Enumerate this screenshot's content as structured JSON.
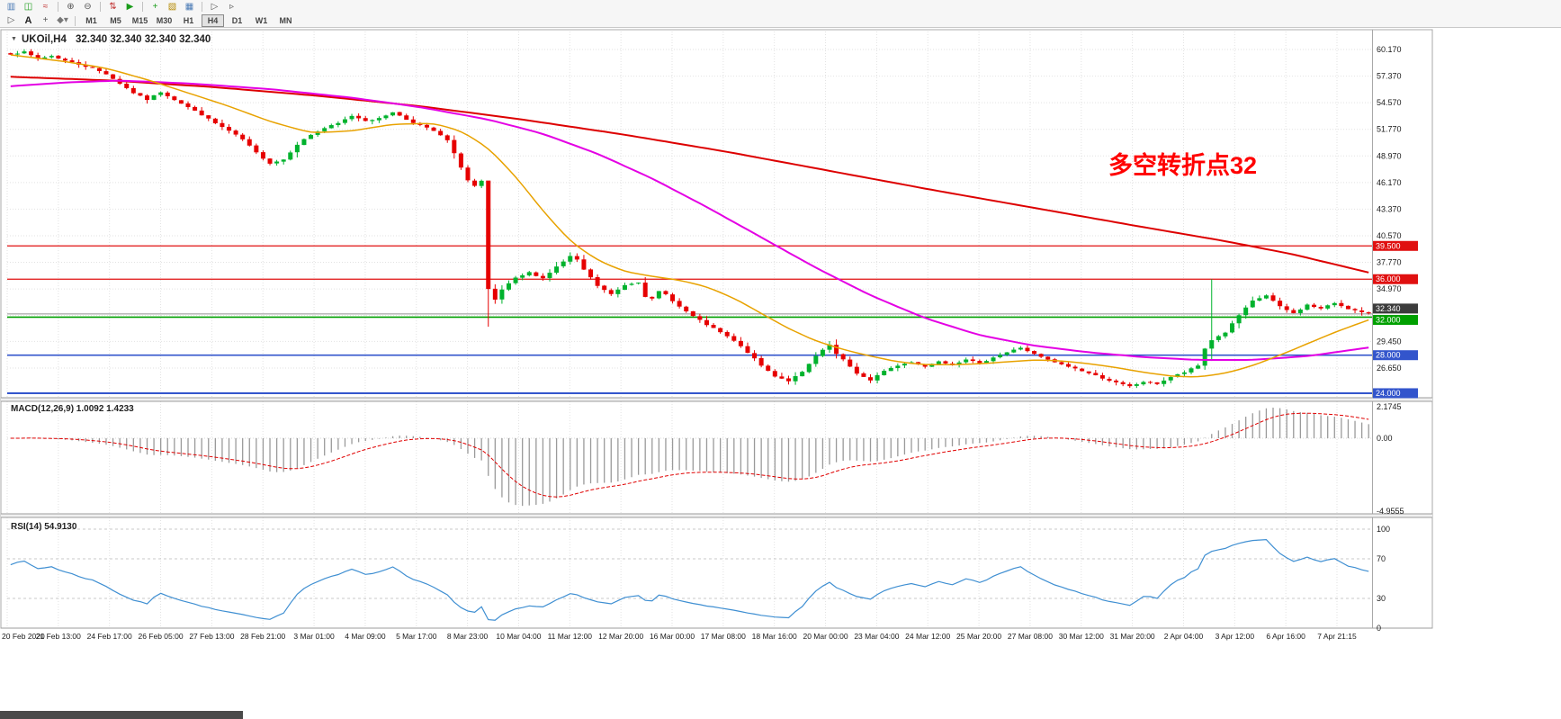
{
  "toolbar": {
    "row1": [
      {
        "name": "bar-chart-icon",
        "glyph": "▥",
        "color": "#4a7ab5"
      },
      {
        "name": "candlestick-chart-icon",
        "glyph": "◫",
        "color": "#1a9c1a"
      },
      {
        "name": "line-chart-icon",
        "glyph": "≈",
        "color": "#c03030"
      },
      "|",
      {
        "name": "zoom-in-icon",
        "glyph": "⊕",
        "color": "#555555"
      },
      {
        "name": "zoom-out-icon",
        "glyph": "⊖",
        "color": "#555555"
      },
      "|",
      {
        "name": "new-order-icon",
        "glyph": "⇅",
        "color": "#c03030"
      },
      {
        "name": "autotrading-icon",
        "glyph": "▶",
        "color": "#1a9c1a"
      },
      "|",
      {
        "name": "indicators-icon",
        "glyph": "+",
        "color": "#1a9c1a"
      },
      {
        "name": "templates-icon",
        "glyph": "▧",
        "color": "#b58900"
      },
      {
        "name": "tile-windows-icon",
        "glyph": "▦",
        "color": "#4a7ab5"
      },
      "|",
      {
        "name": "auto-scroll-icon",
        "glyph": "▷",
        "color": "#555555"
      },
      {
        "name": "chart-shift-icon",
        "glyph": "▹",
        "color": "#555555"
      }
    ],
    "row2_tools": [
      {
        "name": "cursor-tool-icon",
        "glyph": "▷",
        "color": "#555555"
      },
      {
        "name": "text-tool-button",
        "glyph": "A",
        "color": "#222222"
      },
      {
        "name": "crosshair-tool-icon",
        "glyph": "+",
        "color": "#555555"
      },
      {
        "name": "line-studies-dropdown",
        "glyph": "◆▾",
        "color": "#777777"
      }
    ],
    "timeframes": [
      "M1",
      "M5",
      "M15",
      "M30",
      "H1",
      "H4",
      "D1",
      "W1",
      "MN"
    ],
    "active_timeframe": "H4"
  },
  "chart": {
    "title_symbol": "UKOil,H4",
    "title_ohlc": "32.340 32.340 32.340 32.340",
    "annotation": {
      "text": "多空转折点32",
      "color": "#ff0000"
    }
  },
  "macd": {
    "label": "MACD(12,26,9) 1.0092 1.4233",
    "scale_ticks": [
      "2.1745",
      "0.00",
      "-4.9555"
    ],
    "histogram_color": "#9a9a9a",
    "signal_color": "#e00000"
  },
  "rsi": {
    "label": "RSI(14) 54.9130",
    "scale_ticks": [
      [
        "100",
        100
      ],
      [
        "70",
        70
      ],
      [
        "30",
        30
      ],
      [
        "0",
        0
      ]
    ],
    "levels": [
      100,
      70,
      30
    ],
    "line_color": "#3f8fd2"
  },
  "chart_data": [
    {
      "type": "candlestick",
      "symbol": "UKOil",
      "timeframe": "H4",
      "current_ohlc": [
        32.34,
        32.34,
        32.34,
        32.34
      ],
      "ylim": [
        23.8,
        61.0
      ],
      "colors": {
        "up": "#00b22d",
        "down": "#e60000"
      },
      "x_labels": [
        "20 Feb 2020",
        "21 Feb 13:00",
        "24 Feb 17:00",
        "26 Feb 05:00",
        "27 Feb 13:00",
        "28 Feb 21:00",
        "3 Mar 01:00",
        "4 Mar 09:00",
        "5 Mar 17:00",
        "8 Mar 23:00",
        "10 Mar 04:00",
        "11 Mar 12:00",
        "12 Mar 20:00",
        "16 Mar 00:00",
        "17 Mar 08:00",
        "18 Mar 16:00",
        "20 Mar 00:00",
        "23 Mar 04:00",
        "24 Mar 12:00",
        "25 Mar 20:00",
        "27 Mar 08:00",
        "30 Mar 12:00",
        "31 Mar 20:00",
        "2 Apr 04:00",
        "3 Apr 12:00",
        "6 Apr 16:00",
        "7 Apr 21:15"
      ],
      "y_axis": {
        "ticks": [
          [
            60.17,
            "60.170"
          ],
          [
            57.37,
            "57.370"
          ],
          [
            54.57,
            "54.570"
          ],
          [
            51.77,
            "51.770"
          ],
          [
            48.97,
            "48.970"
          ],
          [
            46.17,
            "46.170"
          ],
          [
            43.37,
            "43.370"
          ],
          [
            40.57,
            "40.570"
          ],
          [
            37.77,
            "37.770"
          ],
          [
            34.97,
            "34.970"
          ],
          [
            29.45,
            "29.450"
          ],
          [
            26.65,
            "26.650"
          ]
        ],
        "grid": [
          60.17,
          57.37,
          54.57,
          51.77,
          48.97,
          46.17,
          43.37,
          40.57,
          37.77,
          34.97,
          32.17,
          29.45,
          26.65
        ]
      },
      "price_anchors": [
        [
          0,
          59.7
        ],
        [
          2,
          59.9
        ],
        [
          4,
          59.2
        ],
        [
          6,
          59.5
        ],
        [
          8,
          59.0
        ],
        [
          10,
          58.6
        ],
        [
          12,
          58.2
        ],
        [
          14,
          57.6
        ],
        [
          16,
          56.6
        ],
        [
          18,
          55.6
        ],
        [
          20,
          54.9
        ],
        [
          22,
          55.7
        ],
        [
          24,
          54.9
        ],
        [
          26,
          54.1
        ],
        [
          28,
          53.3
        ],
        [
          30,
          52.4
        ],
        [
          32,
          51.6
        ],
        [
          34,
          50.7
        ],
        [
          36,
          49.3
        ],
        [
          38,
          48.2
        ],
        [
          40,
          48.6
        ],
        [
          42,
          50.2
        ],
        [
          44,
          51.2
        ],
        [
          46,
          51.9
        ],
        [
          48,
          52.4
        ],
        [
          50,
          53.2
        ],
        [
          52,
          52.7
        ],
        [
          54,
          52.9
        ],
        [
          56,
          53.6
        ],
        [
          58,
          52.8
        ],
        [
          60,
          52.2
        ],
        [
          62,
          51.6
        ],
        [
          64,
          50.6
        ],
        [
          66,
          47.8
        ],
        [
          67,
          46.4
        ],
        [
          68,
          45.8
        ],
        [
          69,
          46.3
        ],
        [
          70,
          34.9
        ],
        [
          71,
          33.8
        ],
        [
          72,
          34.9
        ],
        [
          74,
          36.1
        ],
        [
          76,
          36.7
        ],
        [
          78,
          36.1
        ],
        [
          80,
          37.3
        ],
        [
          82,
          38.4
        ],
        [
          83,
          38.0
        ],
        [
          84,
          37.0
        ],
        [
          86,
          35.3
        ],
        [
          88,
          34.4
        ],
        [
          90,
          35.4
        ],
        [
          92,
          35.7
        ],
        [
          93,
          34.2
        ],
        [
          94,
          33.9
        ],
        [
          95,
          34.7
        ],
        [
          96,
          34.4
        ],
        [
          98,
          33.1
        ],
        [
          100,
          32.1
        ],
        [
          102,
          31.2
        ],
        [
          104,
          30.4
        ],
        [
          106,
          29.5
        ],
        [
          108,
          28.3
        ],
        [
          110,
          26.9
        ],
        [
          112,
          25.8
        ],
        [
          114,
          25.3
        ],
        [
          116,
          26.2
        ],
        [
          118,
          27.9
        ],
        [
          120,
          29.1
        ],
        [
          121,
          28.1
        ],
        [
          122,
          27.5
        ],
        [
          124,
          26.1
        ],
        [
          126,
          25.3
        ],
        [
          128,
          26.4
        ],
        [
          130,
          26.9
        ],
        [
          132,
          27.3
        ],
        [
          134,
          26.8
        ],
        [
          136,
          27.4
        ],
        [
          138,
          27.0
        ],
        [
          140,
          27.6
        ],
        [
          142,
          27.1
        ],
        [
          144,
          27.8
        ],
        [
          146,
          28.3
        ],
        [
          148,
          28.8
        ],
        [
          150,
          28.1
        ],
        [
          152,
          27.5
        ],
        [
          154,
          27.0
        ],
        [
          156,
          26.6
        ],
        [
          158,
          26.1
        ],
        [
          160,
          25.6
        ],
        [
          162,
          25.1
        ],
        [
          164,
          24.7
        ],
        [
          166,
          25.2
        ],
        [
          168,
          25.0
        ],
        [
          170,
          25.7
        ],
        [
          172,
          26.2
        ],
        [
          174,
          26.9
        ],
        [
          175,
          28.7
        ],
        [
          176,
          29.6
        ],
        [
          178,
          30.4
        ],
        [
          180,
          32.2
        ],
        [
          182,
          33.7
        ],
        [
          184,
          34.3
        ],
        [
          186,
          33.1
        ],
        [
          188,
          32.4
        ],
        [
          190,
          33.3
        ],
        [
          192,
          32.9
        ],
        [
          194,
          33.5
        ],
        [
          196,
          32.9
        ],
        [
          198,
          32.5
        ],
        [
          199,
          32.34
        ]
      ],
      "special_candles": [
        {
          "i": 70,
          "h": 35.8,
          "l": 31.0
        },
        {
          "i": 176,
          "h": 36.0,
          "l": 27.4
        }
      ],
      "moving_averages": [
        {
          "name": "ma-long-red",
          "color": "#dd0000",
          "width": 2,
          "anchors": [
            [
              0,
              57.3
            ],
            [
              15,
              56.9
            ],
            [
              30,
              56.2
            ],
            [
              45,
              55.3
            ],
            [
              60,
              54.2
            ],
            [
              75,
              52.8
            ],
            [
              90,
              51.2
            ],
            [
              105,
              49.4
            ],
            [
              120,
              47.4
            ],
            [
              135,
              45.4
            ],
            [
              150,
              43.5
            ],
            [
              165,
              41.6
            ],
            [
              178,
              40.0
            ],
            [
              188,
              38.6
            ],
            [
              199,
              36.7
            ]
          ]
        },
        {
          "name": "ma-mid-magenta",
          "color": "#e400e4",
          "width": 2,
          "anchors": [
            [
              0,
              56.3
            ],
            [
              8,
              56.7
            ],
            [
              16,
              56.9
            ],
            [
              26,
              56.6
            ],
            [
              38,
              56.0
            ],
            [
              50,
              55.1
            ],
            [
              60,
              54.1
            ],
            [
              70,
              52.8
            ],
            [
              78,
              51.3
            ],
            [
              86,
              49.2
            ],
            [
              94,
              46.6
            ],
            [
              102,
              43.6
            ],
            [
              110,
              40.4
            ],
            [
              118,
              37.2
            ],
            [
              126,
              34.3
            ],
            [
              134,
              31.9
            ],
            [
              142,
              30.1
            ],
            [
              150,
              29.0
            ],
            [
              158,
              28.3
            ],
            [
              166,
              27.8
            ],
            [
              174,
              27.5
            ],
            [
              182,
              27.5
            ],
            [
              190,
              27.9
            ],
            [
              199,
              28.8
            ]
          ]
        },
        {
          "name": "ma-short-orange",
          "color": "#e8a200",
          "width": 1.5,
          "anchors": [
            [
              0,
              59.6
            ],
            [
              8,
              58.9
            ],
            [
              14,
              58.2
            ],
            [
              20,
              57.0
            ],
            [
              26,
              55.6
            ],
            [
              32,
              54.2
            ],
            [
              38,
              52.6
            ],
            [
              44,
              51.4
            ],
            [
              50,
              51.6
            ],
            [
              56,
              52.3
            ],
            [
              62,
              52.4
            ],
            [
              66,
              51.6
            ],
            [
              70,
              49.8
            ],
            [
              74,
              46.8
            ],
            [
              78,
              43.2
            ],
            [
              82,
              40.0
            ],
            [
              86,
              38.0
            ],
            [
              90,
              36.8
            ],
            [
              94,
              36.3
            ],
            [
              98,
              35.9
            ],
            [
              102,
              35.2
            ],
            [
              106,
              34.0
            ],
            [
              110,
              32.4
            ],
            [
              114,
              30.8
            ],
            [
              118,
              29.5
            ],
            [
              122,
              28.6
            ],
            [
              126,
              27.9
            ],
            [
              130,
              27.3
            ],
            [
              134,
              27.0
            ],
            [
              138,
              27.0
            ],
            [
              142,
              27.1
            ],
            [
              146,
              27.3
            ],
            [
              150,
              27.5
            ],
            [
              154,
              27.4
            ],
            [
              158,
              27.1
            ],
            [
              162,
              26.7
            ],
            [
              166,
              26.2
            ],
            [
              170,
              25.8
            ],
            [
              174,
              25.7
            ],
            [
              178,
              26.1
            ],
            [
              182,
              26.9
            ],
            [
              186,
              28.0
            ],
            [
              190,
              29.2
            ],
            [
              194,
              30.4
            ],
            [
              197,
              31.2
            ],
            [
              199,
              31.7
            ]
          ]
        }
      ],
      "hlines": [
        {
          "price": 39.5,
          "label": "39.500",
          "color": "#e01010",
          "width": 1.2,
          "dy": 0
        },
        {
          "price": 36.0,
          "label": "36.000",
          "color": "#e01010",
          "width": 1.2,
          "dy": 0
        },
        {
          "price": 32.0,
          "label": "32.000",
          "color": "#00a000",
          "width": 1.6,
          "dy": 3
        },
        {
          "price": 28.0,
          "label": "28.000",
          "color": "#3355cc",
          "width": 1.6,
          "dy": 0
        },
        {
          "price": 24.0,
          "label": "24.000",
          "color": "#3355cc",
          "width": 2,
          "dy": 0
        }
      ],
      "current_price": {
        "value": 32.34,
        "label": "32.340",
        "tag_color": "#3c3c3c",
        "line_color": "#909090",
        "dy": -6
      }
    },
    {
      "type": "macd-histogram",
      "label": "MACD(12,26,9) 1.0092 1.4233",
      "params": [
        12,
        26,
        9
      ],
      "current_values": [
        1.0092,
        1.4233
      ],
      "scale_ticks": [
        2.1745,
        0.0,
        -4.9555
      ]
    },
    {
      "type": "rsi-line",
      "label": "RSI(14) 54.9130",
      "period": 14,
      "current_value": 54.913,
      "scale_ticks": [
        100,
        70,
        30,
        0
      ],
      "levels": [
        70,
        30
      ]
    }
  ]
}
